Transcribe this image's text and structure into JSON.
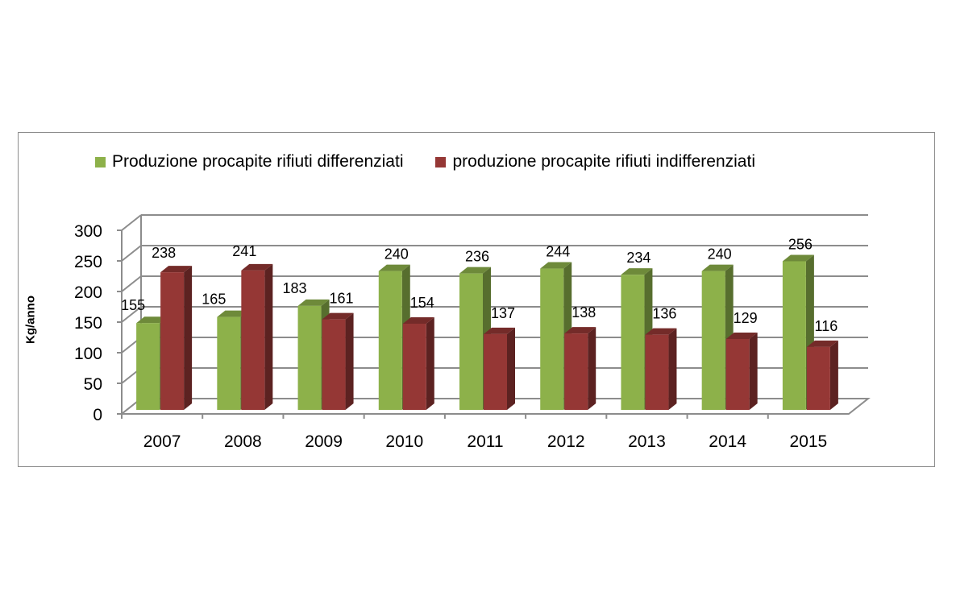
{
  "chart_data": {
    "type": "bar",
    "categories": [
      "2007",
      "2008",
      "2009",
      "2010",
      "2011",
      "2012",
      "2013",
      "2014",
      "2015"
    ],
    "series": [
      {
        "name": "Produzione procapite rifiuti differenziati",
        "values": [
          155,
          165,
          183,
          240,
          236,
          244,
          234,
          240,
          256
        ],
        "color": "#8db14a"
      },
      {
        "name": "produzione procapite rifiuti indifferenziati",
        "values": [
          238,
          241,
          161,
          154,
          137,
          138,
          136,
          129,
          116
        ],
        "color": "#953735"
      }
    ],
    "ylabel": "Kg/anno",
    "ylim": [
      0,
      300
    ],
    "yticks": [
      "0",
      "50",
      "100",
      "150",
      "200",
      "250",
      "300"
    ],
    "grid": true,
    "legend": "top",
    "style": "3d-clustered-column"
  }
}
